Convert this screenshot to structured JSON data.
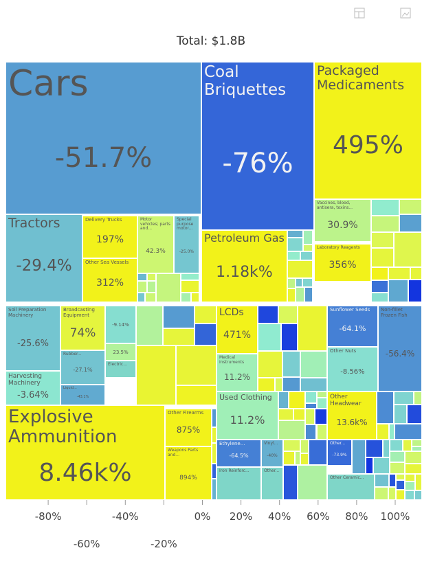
{
  "chart_data": {
    "type": "treemap",
    "title": "Total: $1.8B",
    "labels": [
      "Cars",
      "Coal Briquettes",
      "Packaged Medicaments",
      "Tractors",
      "Delivery Trucks",
      "Other Sea Vessels",
      "Motor vehicles; parts and...",
      "Special purpose motor...",
      "Petroleum Gas",
      "Vaccines, blood, antisera, toxins...",
      "Laboratory Reagents",
      "Soil Preparation Machinery",
      "Broadcasting Equipment",
      "Harvesting Machinery",
      "Rubber...",
      null,
      null,
      "Electric...",
      "LCDs",
      "Medical Instruments",
      "Used Clothing",
      "Sunflower Seeds",
      "Other Nuts",
      "Non-fillet Frozen Fish",
      "Other Headwear",
      "Explosive Ammunition",
      "Other Firearms",
      "Weapons Parts and...",
      "Ethylene...",
      "Vinyl...",
      "Iron Reinforc...",
      "Other...",
      "Other...",
      "Other Ceramic...",
      "Liquid..."
    ],
    "values": [
      -51.7,
      -76,
      495,
      -29.4,
      197,
      312,
      42.3,
      -25.0,
      1180,
      30.9,
      356,
      -25.6,
      74,
      -3.64,
      -27.1,
      -9.14,
      23.5,
      null,
      471,
      11.2,
      11.2,
      -64.1,
      -8.56,
      -56.4,
      13600,
      8460,
      875,
      894,
      -64.5,
      -40,
      null,
      null,
      -73.9,
      null,
      -43.1
    ],
    "value_labels": [
      "-51.7%",
      "-76%",
      "495%",
      "-29.4%",
      "197%",
      "312%",
      "42.3%",
      "-25.0%",
      "1.18k%",
      "30.9%",
      "356%",
      "-25.6%",
      "74%",
      "-3.64%",
      "-27.1%",
      "-9.14%",
      "23.5%",
      null,
      "471%",
      "11.2%",
      "11.2%",
      "-64.1%",
      "-8.56%",
      "-56.4%",
      "13.6k%",
      "8.46k%",
      "875%",
      "894%",
      "-64.5%",
      "-40%",
      null,
      null,
      "-73.9%",
      null,
      "-43.1%"
    ],
    "colorscale": [
      {
        "value": -100,
        "color": "#1030e0"
      },
      {
        "value": -50,
        "color": "#5aa0d0"
      },
      {
        "value": 0,
        "color": "#90ecd0"
      },
      {
        "value": 50,
        "color": "#d8f860"
      },
      {
        "value": 100,
        "color": "#f2f21a"
      }
    ],
    "colorbar_lim": [
      -100,
      100
    ],
    "colorbar_ticks": [
      {
        "value": -80,
        "label": "-80%"
      },
      {
        "value": -60,
        "label": "-60%"
      },
      {
        "value": -40,
        "label": "-40%"
      },
      {
        "value": -20,
        "label": "-20%"
      },
      {
        "value": 0,
        "label": "0%"
      },
      {
        "value": 20,
        "label": "20%"
      },
      {
        "value": 40,
        "label": "40%"
      },
      {
        "value": 60,
        "label": "60%"
      },
      {
        "value": 80,
        "label": "80%"
      },
      {
        "value": 100,
        "label": "100%"
      }
    ]
  }
}
